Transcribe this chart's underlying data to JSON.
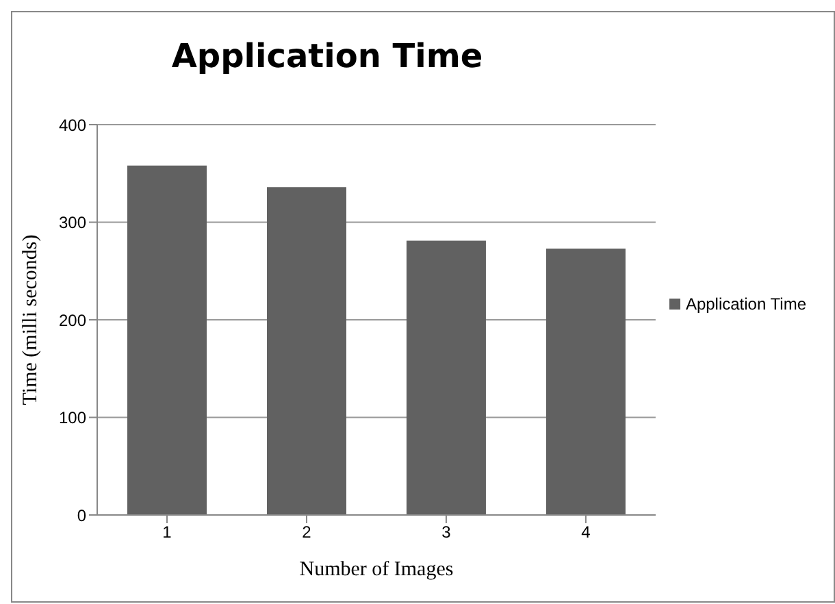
{
  "chart_data": {
    "type": "bar",
    "title": "Application Time",
    "xlabel": "Number of Images",
    "ylabel": "Time (milli seconds)",
    "categories": [
      "1",
      "2",
      "3",
      "4"
    ],
    "series": [
      {
        "name": "Application Time",
        "color": "#616161",
        "values": [
          358,
          336,
          281,
          273
        ]
      }
    ],
    "ylim": [
      0,
      400
    ],
    "yticks": [
      0,
      100,
      200,
      300,
      400
    ],
    "grid": "y",
    "legend": "right"
  }
}
